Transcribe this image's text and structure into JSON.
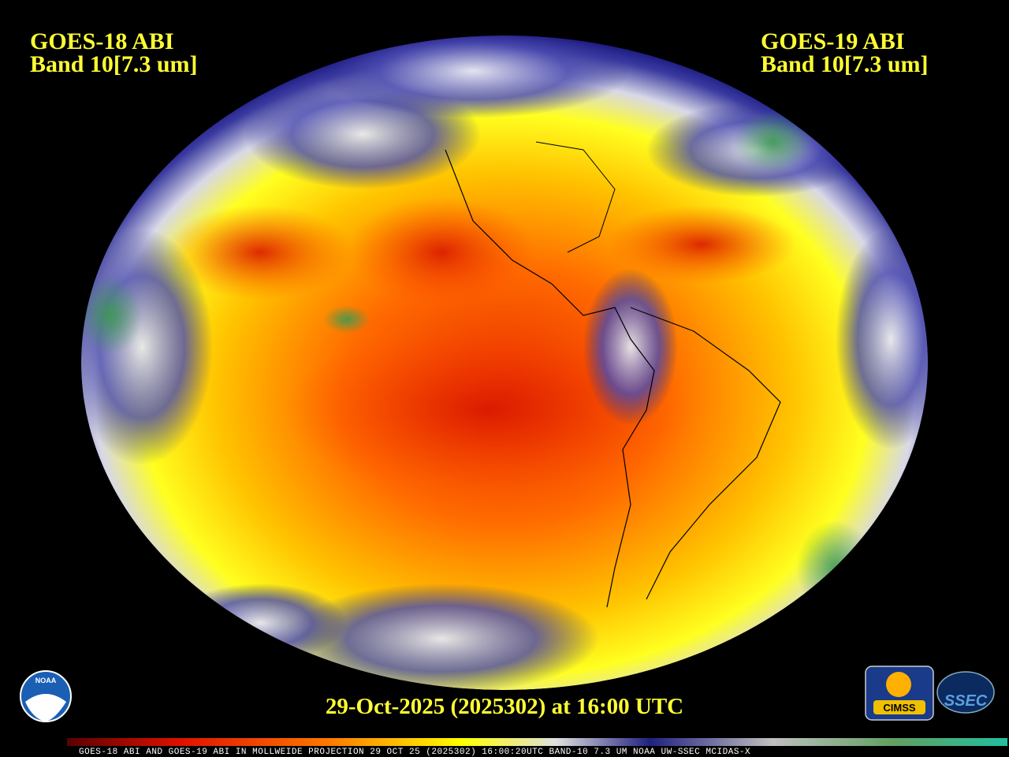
{
  "header_left": {
    "satellite": "GOES-18 ABI",
    "band": "Band 10[7.3 um]"
  },
  "header_right": {
    "satellite": "GOES-19 ABI",
    "band": "Band 10[7.3 um]"
  },
  "timestamp": "29-Oct-2025 (2025302) at 16:00 UTC",
  "logos": {
    "left": "NOAA",
    "right_1": "CIMSS",
    "right_2": "SSEC"
  },
  "colorbar_caption": "GOES-18 ABI AND GOES-19 ABI IN MOLLWEIDE PROJECTION 29 OCT 25 (2025302) 16:00:20UTC BAND-10 7.3 UM NOAA UW-SSEC MCIDAS-X"
}
